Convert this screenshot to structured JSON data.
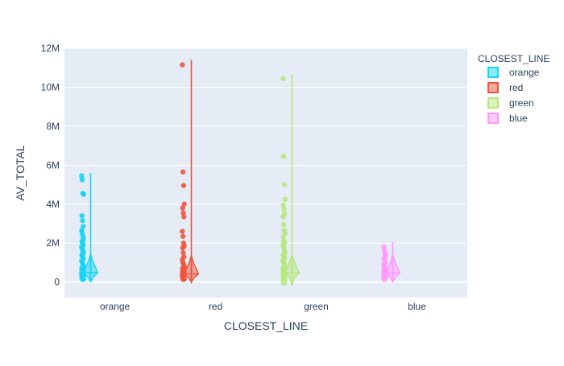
{
  "chart_data": {
    "type": "violin",
    "xlabel": "CLOSEST_LINE",
    "ylabel": "AV_TOTAL",
    "categories": [
      "orange",
      "red",
      "green",
      "blue"
    ],
    "ylim": [
      -800000,
      12000000
    ],
    "yticks": [
      0,
      2000000,
      4000000,
      6000000,
      8000000,
      10000000,
      12000000
    ],
    "ytick_labels": [
      "0",
      "2M",
      "4M",
      "6M",
      "8M",
      "10M",
      "12M"
    ],
    "grid": true,
    "legend": {
      "title": "CLOSEST_LINE",
      "placement": "top-right"
    },
    "series": [
      {
        "name": "orange",
        "color": "#19d3f3",
        "range": [
          0,
          5600000
        ],
        "q1": 320000,
        "median": 480000,
        "q3": 700000,
        "outliers": [
          5450000,
          5250000,
          4550000,
          4500000,
          3400000,
          3150000,
          2850000,
          2650000,
          2500000,
          2350000,
          2200000,
          2100000,
          2000000,
          1900000,
          1800000,
          1700000,
          1600000,
          1500000,
          1400000,
          1300000,
          1200000,
          1100000,
          1000000,
          900000,
          800000,
          700000,
          600000,
          500000,
          400000,
          300000,
          200000,
          150000
        ]
      },
      {
        "name": "red",
        "color": "#ef553b",
        "range": [
          0,
          11400000
        ],
        "q1": 280000,
        "median": 420000,
        "q3": 620000,
        "outliers": [
          11150000,
          5650000,
          4950000,
          4000000,
          3800000,
          3550000,
          3350000,
          2600000,
          2350000,
          2000000,
          1850000,
          1750000,
          1500000,
          1300000,
          1150000,
          1000000,
          900000,
          800000,
          700000,
          600000,
          500000,
          400000,
          300000,
          200000,
          150000
        ]
      },
      {
        "name": "green",
        "color": "#b6e880",
        "range": [
          -200000,
          10650000
        ],
        "q1": 320000,
        "median": 470000,
        "q3": 700000,
        "outliers": [
          10450000,
          6450000,
          5000000,
          4250000,
          3950000,
          3750000,
          3500000,
          3350000,
          2950000,
          2650000,
          2500000,
          2300000,
          2100000,
          2000000,
          1900000,
          1800000,
          1650000,
          1500000,
          1400000,
          1300000,
          1200000,
          1100000,
          1000000,
          900000,
          800000,
          700000,
          600000,
          500000,
          400000,
          300000,
          200000
        ]
      },
      {
        "name": "blue",
        "color": "#ff97ff",
        "range": [
          0,
          2050000
        ],
        "q1": 320000,
        "median": 470000,
        "q3": 680000,
        "outliers": [
          1800000,
          1650000,
          1450000,
          1350000,
          1200000,
          1100000,
          1000000,
          900000,
          800000,
          700000,
          600000,
          500000,
          400000,
          300000,
          250000
        ]
      }
    ]
  }
}
